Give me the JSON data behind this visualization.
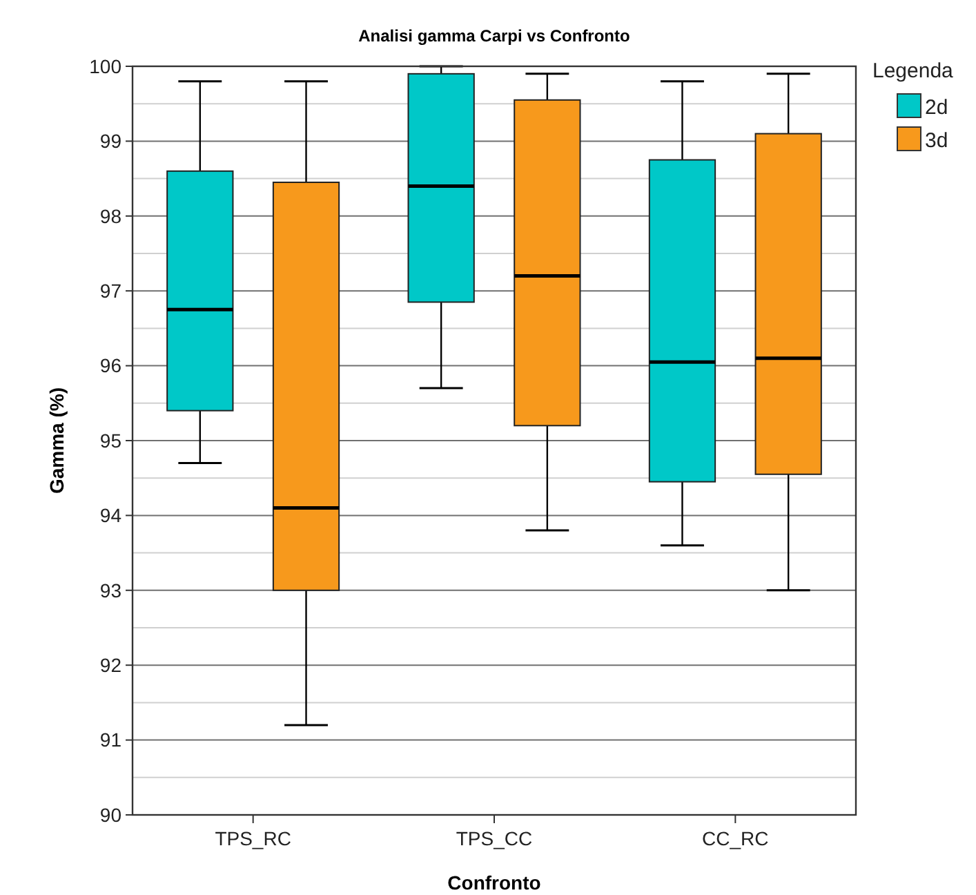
{
  "chart_data": {
    "type": "box",
    "title": "Analisi gamma  Carpi vs Confronto",
    "xlabel": "Confronto",
    "ylabel": "Gamma (%)",
    "legend_title": "Legenda",
    "legend": "right",
    "grid": "y",
    "categories": [
      "TPS_RC",
      "TPS_CC",
      "CC_RC"
    ],
    "ylim": [
      90,
      100
    ],
    "yticks": [
      90,
      {
        "value": 90.5,
        "label": null
      },
      91,
      {
        "value": 91.5,
        "label": null
      },
      92,
      {
        "value": 92.5,
        "label": null
      },
      93,
      {
        "value": 93.5,
        "label": null
      },
      94,
      {
        "value": 94.5,
        "label": null
      },
      95,
      {
        "value": 95.5,
        "label": null
      },
      96,
      {
        "value": 96.5,
        "label": null
      },
      97,
      {
        "value": 97.5,
        "label": null
      },
      98,
      {
        "value": 98.5,
        "label": null
      },
      99,
      {
        "value": 99.5,
        "label": null
      },
      100
    ],
    "series": [
      {
        "name": "2d",
        "color": "#00c8c8",
        "boxes": [
          {
            "low": 94.7,
            "q1": 95.4,
            "median": 96.75,
            "q3": 98.6,
            "high": 99.8
          },
          {
            "low": 95.7,
            "q1": 96.85,
            "median": 98.4,
            "q3": 99.9,
            "high": 100
          },
          {
            "low": 93.6,
            "q1": 94.45,
            "median": 96.05,
            "q3": 98.75,
            "high": 99.8
          }
        ]
      },
      {
        "name": "3d",
        "color": "#f7991c",
        "boxes": [
          {
            "low": 91.2,
            "q1": 93.0,
            "median": 94.1,
            "q3": 98.45,
            "high": 99.8
          },
          {
            "low": 93.8,
            "q1": 95.2,
            "median": 97.2,
            "q3": 99.55,
            "high": 99.9
          },
          {
            "low": 93.0,
            "q1": 94.55,
            "median": 96.1,
            "q3": 99.1,
            "high": 99.9
          }
        ]
      }
    ]
  }
}
